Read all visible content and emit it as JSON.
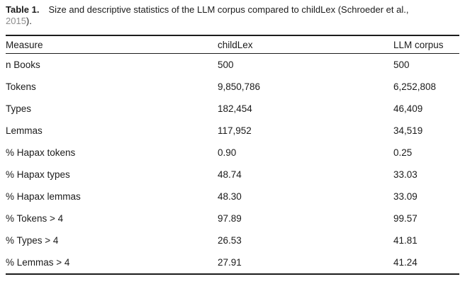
{
  "caption": {
    "label": "Table 1.",
    "body": "Size and descriptive statistics of the LLM corpus compared to childLex (Schroeder et al.,",
    "year": "2015",
    "end": ")."
  },
  "table": {
    "columns": [
      "Measure",
      "childLex",
      "LLM corpus"
    ],
    "rows": [
      {
        "measure": "n Books",
        "childlex": "500",
        "llm": "500"
      },
      {
        "measure": "Tokens",
        "childlex": "9,850,786",
        "llm": "6,252,808"
      },
      {
        "measure": "Types",
        "childlex": "182,454",
        "llm": "46,409"
      },
      {
        "measure": "Lemmas",
        "childlex": "117,952",
        "llm": "34,519"
      },
      {
        "measure": "% Hapax tokens",
        "childlex": "0.90",
        "llm": "0.25"
      },
      {
        "measure": "% Hapax types",
        "childlex": "48.74",
        "llm": "33.03"
      },
      {
        "measure": "% Hapax lemmas",
        "childlex": "48.30",
        "llm": "33.09"
      },
      {
        "measure": "% Tokens > 4",
        "childlex": "97.89",
        "llm": "99.57"
      },
      {
        "measure": "% Types > 4",
        "childlex": "26.53",
        "llm": "41.81"
      },
      {
        "measure": "% Lemmas > 4",
        "childlex": "27.91",
        "llm": "41.24"
      }
    ]
  },
  "colors": {
    "text": "#1b1b1b",
    "rule": "#1c1c1c",
    "citation_year": "#8d8d8d",
    "background": "#ffffff"
  }
}
